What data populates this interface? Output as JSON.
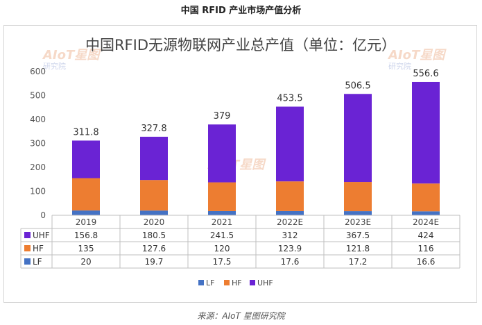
{
  "page_title": "中国 RFID 产业市场产值分析",
  "source": "来源：AIoT 星图研究院",
  "watermark": {
    "logo": "AIoT星图",
    "sub": "研究院"
  },
  "chart_data": {
    "type": "bar",
    "stacked": true,
    "title": "中国RFID无源物联网产业总产值（单位：亿元）",
    "categories": [
      "2019",
      "2020",
      "2021",
      "2022E",
      "2023E",
      "2024E"
    ],
    "series": [
      {
        "name": "LF",
        "color": "#4472c4",
        "values": [
          20,
          19.7,
          17.5,
          17.6,
          17.2,
          16.6
        ]
      },
      {
        "name": "HF",
        "color": "#ed7d31",
        "values": [
          135,
          127.6,
          120,
          123.9,
          121.8,
          116
        ]
      },
      {
        "name": "UHF",
        "color": "#6a23d4",
        "values": [
          156.8,
          180.5,
          241.5,
          312,
          367.5,
          424
        ]
      }
    ],
    "totals": [
      "311.8",
      "327.8",
      "379",
      "453.5",
      "506.5",
      "556.6"
    ],
    "table_rows": [
      {
        "name": "UHF",
        "values": [
          "156.8",
          "180.5",
          "241.5",
          "312",
          "367.5",
          "424"
        ]
      },
      {
        "name": "HF",
        "values": [
          "135",
          "127.6",
          "120",
          "123.9",
          "121.8",
          "116"
        ]
      },
      {
        "name": "LF",
        "values": [
          "20",
          "19.7",
          "17.5",
          "17.6",
          "17.2",
          "16.6"
        ]
      }
    ],
    "ylim": [
      0,
      600
    ],
    "yticks": [
      0,
      100,
      200,
      300,
      400,
      500,
      600
    ],
    "legend": [
      "LF",
      "HF",
      "UHF"
    ],
    "grid": false
  }
}
